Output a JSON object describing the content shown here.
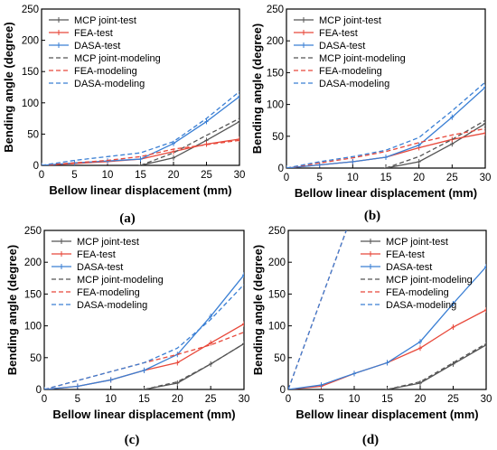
{
  "chart_data": [
    {
      "panel_label": "(a)",
      "type": "line",
      "xlabel": "Bellow linear displacement (mm)",
      "ylabel": "Bending angle (degree)",
      "xlim": [
        0,
        30
      ],
      "ylim": [
        0,
        250
      ],
      "xticks": [
        "0",
        "5",
        "10",
        "15",
        "20",
        "25",
        "30"
      ],
      "yticks": [
        "0",
        "50",
        "100",
        "150",
        "200",
        "250"
      ],
      "legend_position": "top-left",
      "series": [
        {
          "name": "MCP joint-test",
          "color": "#555555",
          "dash": "solid",
          "marker": true,
          "x": [
            15,
            20,
            25,
            30
          ],
          "y": [
            0,
            12,
            40,
            70
          ]
        },
        {
          "name": "FEA-test",
          "color": "#e8483a",
          "dash": "solid",
          "marker": true,
          "x": [
            0,
            5,
            10,
            15,
            20,
            25,
            30
          ],
          "y": [
            0,
            3,
            6,
            10,
            22,
            34,
            42
          ]
        },
        {
          "name": "DASA-test",
          "color": "#3a7fd4",
          "dash": "solid",
          "marker": true,
          "x": [
            0,
            5,
            10,
            15,
            20,
            25,
            30
          ],
          "y": [
            0,
            4,
            7,
            10,
            35,
            70,
            110
          ]
        },
        {
          "name": "MCP joint-modeling",
          "color": "#555555",
          "dash": "dash",
          "marker": false,
          "x": [
            15,
            20,
            25,
            30
          ],
          "y": [
            0,
            20,
            48,
            75
          ]
        },
        {
          "name": "FEA-modeling",
          "color": "#e8483a",
          "dash": "dash",
          "marker": false,
          "x": [
            0,
            5,
            10,
            15,
            20,
            25,
            30
          ],
          "y": [
            0,
            4,
            8,
            14,
            26,
            33,
            40
          ]
        },
        {
          "name": "DASA-modeling",
          "color": "#3a7fd4",
          "dash": "dash",
          "marker": false,
          "x": [
            0,
            5,
            10,
            15,
            20,
            25,
            30
          ],
          "y": [
            0,
            8,
            14,
            20,
            38,
            75,
            118
          ]
        }
      ]
    },
    {
      "panel_label": "(b)",
      "type": "line",
      "xlabel": "Bellow linear displacement (mm)",
      "ylabel": "Bending angle (degree)",
      "xlim": [
        0,
        30
      ],
      "ylim": [
        0,
        250
      ],
      "xticks": [
        "0",
        "5",
        "10",
        "15",
        "20",
        "25",
        "30"
      ],
      "yticks": [
        "0",
        "50",
        "100",
        "150",
        "200",
        "250"
      ],
      "legend_position": "top-left",
      "series": [
        {
          "name": "MCP joint-test",
          "color": "#555555",
          "dash": "solid",
          "marker": true,
          "x": [
            15,
            20,
            25,
            30
          ],
          "y": [
            0,
            10,
            38,
            70
          ]
        },
        {
          "name": "FEA-test",
          "color": "#e8483a",
          "dash": "solid",
          "marker": true,
          "x": [
            0,
            5,
            10,
            15,
            20,
            25,
            30
          ],
          "y": [
            0,
            5,
            10,
            17,
            32,
            45,
            55
          ]
        },
        {
          "name": "DASA-test",
          "color": "#3a7fd4",
          "dash": "solid",
          "marker": true,
          "x": [
            0,
            5,
            10,
            15,
            20,
            25,
            30
          ],
          "y": [
            0,
            5,
            10,
            17,
            36,
            80,
            127
          ]
        },
        {
          "name": "MCP joint-modeling",
          "color": "#555555",
          "dash": "dash",
          "marker": false,
          "x": [
            15,
            20,
            25,
            30
          ],
          "y": [
            0,
            18,
            45,
            75
          ]
        },
        {
          "name": "FEA-modeling",
          "color": "#e8483a",
          "dash": "dash",
          "marker": false,
          "x": [
            0,
            5,
            10,
            15,
            20,
            25,
            30
          ],
          "y": [
            0,
            8,
            16,
            26,
            40,
            52,
            62
          ]
        },
        {
          "name": "DASA-modeling",
          "color": "#3a7fd4",
          "dash": "dash",
          "marker": false,
          "x": [
            0,
            5,
            10,
            15,
            20,
            25,
            30
          ],
          "y": [
            0,
            10,
            18,
            28,
            48,
            90,
            135
          ]
        }
      ]
    },
    {
      "panel_label": "(c)",
      "type": "line",
      "xlabel": "Bellow linear displacement (mm)",
      "ylabel": "Bending angle (degree)",
      "xlim": [
        0,
        30
      ],
      "ylim": [
        0,
        250
      ],
      "xticks": [
        "0",
        "5",
        "10",
        "15",
        "20",
        "25",
        "30"
      ],
      "yticks": [
        "0",
        "50",
        "100",
        "150",
        "200",
        "250"
      ],
      "legend_position": "top-left",
      "series": [
        {
          "name": "MCP joint-test",
          "color": "#555555",
          "dash": "solid",
          "marker": true,
          "x": [
            15,
            20,
            25,
            30
          ],
          "y": [
            0,
            10,
            40,
            72
          ]
        },
        {
          "name": "FEA-test",
          "color": "#e8483a",
          "dash": "solid",
          "marker": true,
          "x": [
            0,
            5,
            10,
            15,
            20,
            25,
            30
          ],
          "y": [
            0,
            5,
            15,
            30,
            42,
            73,
            103
          ]
        },
        {
          "name": "DASA-test",
          "color": "#3a7fd4",
          "dash": "solid",
          "marker": true,
          "x": [
            0,
            5,
            10,
            15,
            20,
            25,
            30
          ],
          "y": [
            0,
            5,
            15,
            30,
            55,
            115,
            180
          ]
        },
        {
          "name": "MCP joint-modeling",
          "color": "#555555",
          "dash": "dash",
          "marker": false,
          "x": [
            15,
            20,
            25,
            30
          ],
          "y": [
            0,
            12,
            40,
            72
          ]
        },
        {
          "name": "FEA-modeling",
          "color": "#e8483a",
          "dash": "dash",
          "marker": false,
          "x": [
            0,
            5,
            10,
            15,
            20,
            25,
            30
          ],
          "y": [
            0,
            14,
            28,
            42,
            55,
            70,
            90
          ]
        },
        {
          "name": "DASA-modeling",
          "color": "#3a7fd4",
          "dash": "dash",
          "marker": false,
          "x": [
            0,
            5,
            10,
            15,
            20,
            25,
            30
          ],
          "y": [
            0,
            14,
            28,
            42,
            65,
            110,
            165
          ]
        }
      ]
    },
    {
      "panel_label": "(d)",
      "type": "line",
      "xlabel": "Bellow linear displacement (mm)",
      "ylabel": "Bending angle (degree)",
      "xlim": [
        0,
        30
      ],
      "ylim": [
        0,
        250
      ],
      "xticks": [
        "0",
        "5",
        "10",
        "15",
        "20",
        "25",
        "30"
      ],
      "yticks": [
        "0",
        "50",
        "100",
        "150",
        "200",
        "250"
      ],
      "legend_position": "top-right",
      "series": [
        {
          "name": "MCP joint-test",
          "color": "#555555",
          "dash": "solid",
          "marker": true,
          "x": [
            15,
            20,
            25,
            30
          ],
          "y": [
            0,
            10,
            40,
            70
          ]
        },
        {
          "name": "FEA-test",
          "color": "#e8483a",
          "dash": "solid",
          "marker": true,
          "x": [
            0,
            5,
            10,
            15,
            20,
            25,
            30
          ],
          "y": [
            0,
            5,
            25,
            42,
            65,
            98,
            125
          ]
        },
        {
          "name": "DASA-test",
          "color": "#3a7fd4",
          "dash": "solid",
          "marker": true,
          "x": [
            0,
            5,
            10,
            15,
            20,
            25,
            30
          ],
          "y": [
            0,
            7,
            25,
            42,
            75,
            135,
            193
          ]
        },
        {
          "name": "MCP joint-modeling",
          "color": "#555555",
          "dash": "dash",
          "marker": false,
          "x": [
            15,
            20,
            25,
            30
          ],
          "y": [
            0,
            12,
            42,
            72
          ]
        },
        {
          "name": "FEA-modeling",
          "color": "#e8483a",
          "dash": "dash",
          "marker": false,
          "x": [
            0,
            5,
            8.8
          ],
          "y": [
            0,
            142,
            250
          ]
        },
        {
          "name": "DASA-modeling",
          "color": "#3a7fd4",
          "dash": "dash",
          "marker": false,
          "x": [
            0,
            5,
            8.8
          ],
          "y": [
            0,
            142,
            250
          ]
        }
      ]
    }
  ]
}
